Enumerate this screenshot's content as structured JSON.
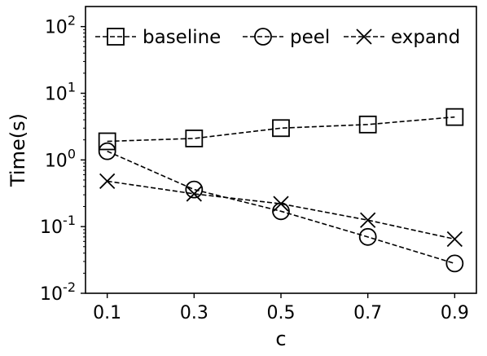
{
  "chart_data": {
    "type": "line",
    "xlabel": "c",
    "ylabel": "Time(s)",
    "yscale": "log",
    "ylim": [
      0.01,
      200
    ],
    "xlim": [
      0.05,
      0.95
    ],
    "x": [
      0.1,
      0.3,
      0.5,
      0.7,
      0.9
    ],
    "xtick_labels": [
      "0.1",
      "0.3",
      "0.5",
      "0.7",
      "0.9"
    ],
    "ytick_labels": [
      {
        "base": "10",
        "exp": "-2",
        "value": 0.01
      },
      {
        "base": "10",
        "exp": "-1",
        "value": 0.1
      },
      {
        "base": "10",
        "exp": "0",
        "value": 1
      },
      {
        "base": "10",
        "exp": "1",
        "value": 10
      },
      {
        "base": "10",
        "exp": "2",
        "value": 100
      }
    ],
    "grid": false,
    "legend_position": "top",
    "series": [
      {
        "name": "baseline",
        "marker": "square",
        "color": "#000000",
        "values": [
          1.9,
          2.1,
          3.0,
          3.4,
          4.4
        ]
      },
      {
        "name": "peel",
        "marker": "circle",
        "color": "#000000",
        "values": [
          1.35,
          0.36,
          0.17,
          0.07,
          0.028
        ]
      },
      {
        "name": "expand",
        "marker": "x",
        "color": "#000000",
        "values": [
          0.48,
          0.31,
          0.22,
          0.125,
          0.065
        ]
      }
    ]
  }
}
